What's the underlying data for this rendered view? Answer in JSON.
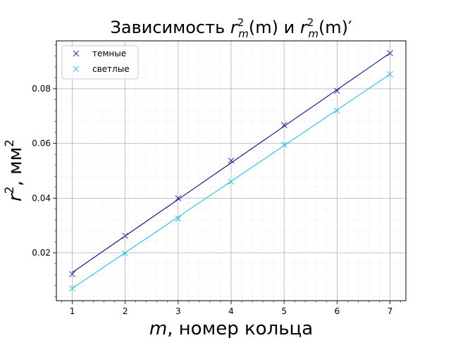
{
  "chart_data": {
    "type": "scatter",
    "title": {
      "prefix": "Зависимость ",
      "mid": " и ",
      "sym": "r",
      "sup": "2",
      "sub": "m",
      "arg": "(m)",
      "prime": "′"
    },
    "xlabel": {
      "italic": "m",
      "rest": ", номер кольца"
    },
    "ylabel": {
      "italic": "r",
      "sup": "2",
      "rest": ", мм",
      "sup2": "2"
    },
    "xlim": [
      0.7,
      7.3
    ],
    "ylim": [
      0.0025,
      0.0975
    ],
    "xticks": [
      1,
      2,
      3,
      4,
      5,
      6,
      7
    ],
    "xtick_labels": [
      "1",
      "2",
      "3",
      "4",
      "5",
      "6",
      "7"
    ],
    "yticks": [
      0.02,
      0.04,
      0.06,
      0.08
    ],
    "ytick_labels": [
      "0.02",
      "0.04",
      "0.06",
      "0.08"
    ],
    "grid": true,
    "minor_grid": true,
    "legend_position": "top-left",
    "series": [
      {
        "name": "темные",
        "color": "#2b2bb8",
        "marker": "x",
        "x": [
          1,
          2,
          3,
          4,
          5,
          6,
          7
        ],
        "y": [
          0.0122,
          0.0262,
          0.04,
          0.0537,
          0.0667,
          0.0792,
          0.093
        ],
        "fit": {
          "x": [
            1,
            7
          ],
          "y": [
            0.0128,
            0.093
          ]
        },
        "fit_color": "#0a0a82"
      },
      {
        "name": "светлые",
        "color": "#2fc3e8",
        "marker": "x",
        "x": [
          1,
          2,
          3,
          4,
          5,
          6,
          7
        ],
        "y": [
          0.007,
          0.0198,
          0.0325,
          0.046,
          0.0595,
          0.072,
          0.0853
        ],
        "fit": {
          "x": [
            1,
            7
          ],
          "y": [
            0.007,
            0.0853
          ]
        },
        "fit_color": "#1ec1ee"
      }
    ]
  }
}
